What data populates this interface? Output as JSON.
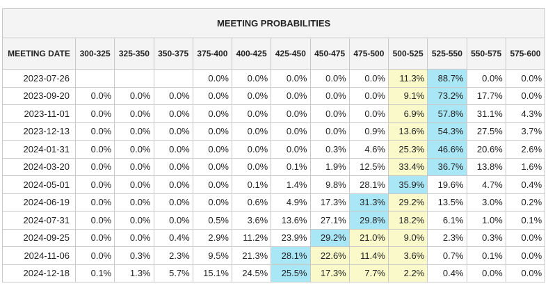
{
  "title": "MEETING PROBABILITIES",
  "header": {
    "date_label": "MEETING DATE",
    "ranges": [
      "300-325",
      "325-350",
      "350-375",
      "375-400",
      "400-425",
      "425-450",
      "450-475",
      "475-500",
      "500-525",
      "525-550",
      "550-575",
      "575-600"
    ]
  },
  "colors": {
    "max_highlight": "#a9e7f7",
    "second_highlight": "#f9f9c9"
  },
  "rows": [
    {
      "date": "2023-07-26",
      "values": [
        "",
        "",
        "",
        "0.0%",
        "0.0%",
        "0.0%",
        "0.0%",
        "0.0%",
        "11.3%",
        "88.7%",
        "0.0%",
        "0.0%"
      ],
      "hl": {
        "8": "y",
        "9": "b"
      }
    },
    {
      "date": "2023-09-20",
      "values": [
        "0.0%",
        "0.0%",
        "0.0%",
        "0.0%",
        "0.0%",
        "0.0%",
        "0.0%",
        "0.0%",
        "9.1%",
        "73.2%",
        "17.7%",
        "0.0%"
      ],
      "hl": {
        "8": "y",
        "9": "b"
      }
    },
    {
      "date": "2023-11-01",
      "values": [
        "0.0%",
        "0.0%",
        "0.0%",
        "0.0%",
        "0.0%",
        "0.0%",
        "0.0%",
        "0.0%",
        "6.9%",
        "57.8%",
        "31.1%",
        "4.3%"
      ],
      "hl": {
        "8": "y",
        "9": "b"
      }
    },
    {
      "date": "2023-12-13",
      "values": [
        "0.0%",
        "0.0%",
        "0.0%",
        "0.0%",
        "0.0%",
        "0.0%",
        "0.0%",
        "0.9%",
        "13.6%",
        "54.3%",
        "27.5%",
        "3.7%"
      ],
      "hl": {
        "8": "y",
        "9": "b"
      }
    },
    {
      "date": "2024-01-31",
      "values": [
        "0.0%",
        "0.0%",
        "0.0%",
        "0.0%",
        "0.0%",
        "0.0%",
        "0.3%",
        "4.6%",
        "25.3%",
        "46.6%",
        "20.6%",
        "2.6%"
      ],
      "hl": {
        "8": "y",
        "9": "b"
      }
    },
    {
      "date": "2024-03-20",
      "values": [
        "0.0%",
        "0.0%",
        "0.0%",
        "0.0%",
        "0.0%",
        "0.1%",
        "1.9%",
        "12.5%",
        "33.4%",
        "36.7%",
        "13.8%",
        "1.6%"
      ],
      "hl": {
        "8": "y",
        "9": "b"
      }
    },
    {
      "date": "2024-05-01",
      "values": [
        "0.0%",
        "0.0%",
        "0.0%",
        "0.0%",
        "0.1%",
        "1.4%",
        "9.8%",
        "28.1%",
        "35.9%",
        "19.6%",
        "4.7%",
        "0.4%"
      ],
      "hl": {
        "8": "b"
      }
    },
    {
      "date": "2024-06-19",
      "values": [
        "0.0%",
        "0.0%",
        "0.0%",
        "0.0%",
        "0.6%",
        "4.9%",
        "17.3%",
        "31.3%",
        "29.2%",
        "13.5%",
        "3.0%",
        "0.2%"
      ],
      "hl": {
        "7": "b",
        "8": "y"
      }
    },
    {
      "date": "2024-07-31",
      "values": [
        "0.0%",
        "0.0%",
        "0.0%",
        "0.5%",
        "3.6%",
        "13.6%",
        "27.1%",
        "29.8%",
        "18.2%",
        "6.1%",
        "1.0%",
        "0.1%"
      ],
      "hl": {
        "7": "b",
        "8": "y"
      }
    },
    {
      "date": "2024-09-25",
      "values": [
        "0.0%",
        "0.0%",
        "0.4%",
        "2.9%",
        "11.2%",
        "23.9%",
        "29.2%",
        "21.0%",
        "9.0%",
        "2.3%",
        "0.3%",
        "0.0%"
      ],
      "hl": {
        "6": "b",
        "7": "y",
        "8": "y"
      }
    },
    {
      "date": "2024-11-06",
      "values": [
        "0.0%",
        "0.3%",
        "2.3%",
        "9.5%",
        "21.3%",
        "28.1%",
        "22.6%",
        "11.4%",
        "3.6%",
        "0.7%",
        "0.1%",
        "0.0%"
      ],
      "hl": {
        "5": "b",
        "6": "y",
        "7": "y",
        "8": "y"
      }
    },
    {
      "date": "2024-12-18",
      "values": [
        "0.1%",
        "1.3%",
        "5.7%",
        "15.1%",
        "24.5%",
        "25.5%",
        "17.3%",
        "7.7%",
        "2.2%",
        "0.4%",
        "0.0%",
        "0.0%"
      ],
      "hl": {
        "5": "b",
        "6": "y",
        "7": "y",
        "8": "y"
      }
    }
  ]
}
